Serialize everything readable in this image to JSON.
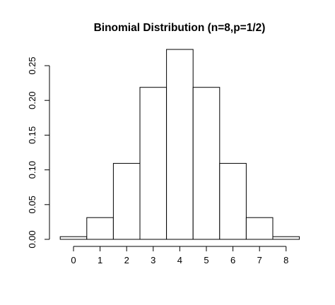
{
  "chart_data": {
    "type": "bar",
    "title": "Binomial Distribution (n=8,p=1/2)",
    "xlabel": "",
    "ylabel": "",
    "categories": [
      "0",
      "1",
      "2",
      "3",
      "4",
      "5",
      "6",
      "7",
      "8"
    ],
    "values": [
      0.0039,
      0.0313,
      0.1094,
      0.2188,
      0.2734,
      0.2188,
      0.1094,
      0.0313,
      0.0039
    ],
    "ylim": [
      0,
      0.27
    ],
    "yticks": [
      0.0,
      0.05,
      0.1,
      0.15,
      0.2,
      0.25
    ],
    "ytick_labels": [
      "0.00",
      "0.05",
      "0.10",
      "0.15",
      "0.20",
      "0.25"
    ],
    "grid": false,
    "legend": "none",
    "bar_fill": "#ffffff",
    "bar_stroke": "#000000"
  }
}
